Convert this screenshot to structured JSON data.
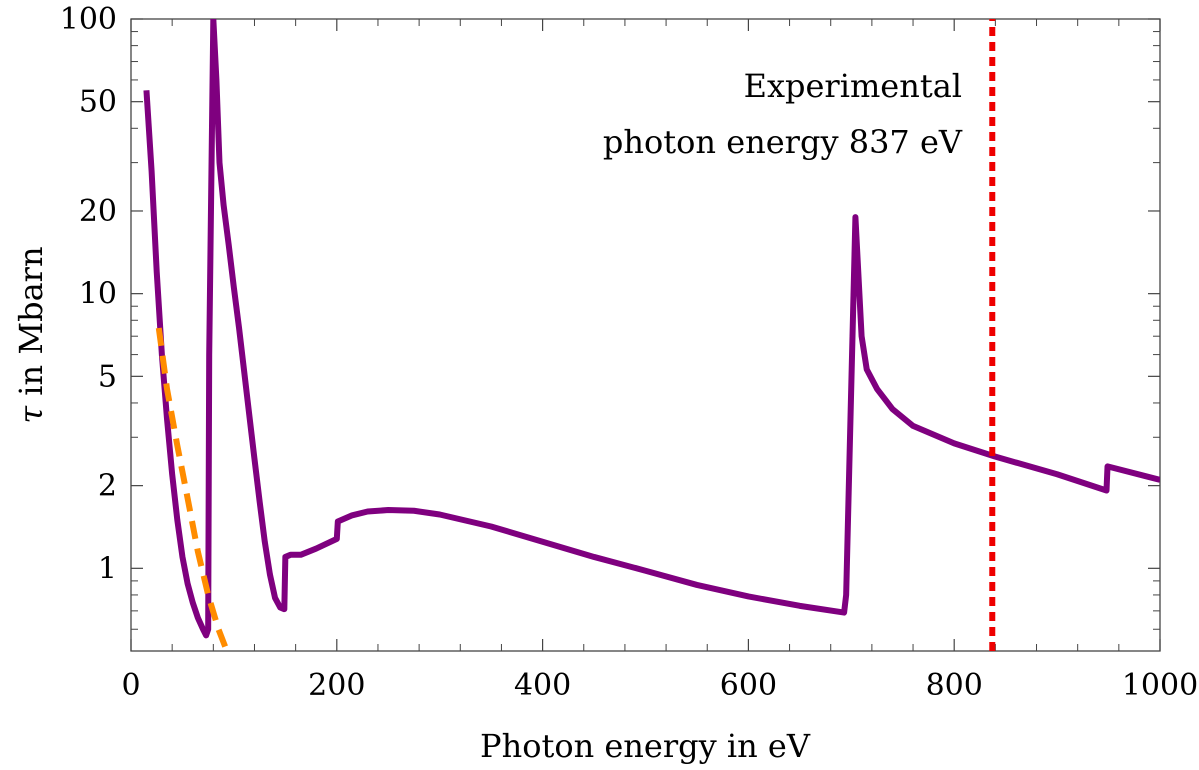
{
  "chart_data": {
    "type": "line",
    "xlabel": "Photon energy in eV",
    "ylabel_symbol": "τ",
    "ylabel_rest": " in Mbarn",
    "xlim": [
      0,
      1000
    ],
    "ylim": [
      0.5,
      100
    ],
    "yscale": "log",
    "grid": false,
    "x_ticks": [
      0,
      200,
      400,
      600,
      800,
      1000
    ],
    "x_tick_labels": [
      "0",
      "200",
      "400",
      "600",
      "800",
      "1000"
    ],
    "y_ticks": [
      1,
      2,
      5,
      10,
      20,
      50,
      100
    ],
    "y_tick_labels": [
      "1",
      "2",
      "5",
      "10",
      "20",
      "50",
      "100"
    ],
    "annotation": {
      "lines": [
        "Experimental",
        "photon energy 837 eV"
      ],
      "x_value": 837
    },
    "series": [
      {
        "style": "solid",
        "color": "#7f007f",
        "points": [
          [
            15,
            55
          ],
          [
            20,
            28
          ],
          [
            25,
            12
          ],
          [
            30,
            6
          ],
          [
            35,
            3.5
          ],
          [
            40,
            2.2
          ],
          [
            45,
            1.5
          ],
          [
            50,
            1.1
          ],
          [
            55,
            0.88
          ],
          [
            60,
            0.75
          ],
          [
            65,
            0.66
          ],
          [
            70,
            0.6
          ],
          [
            73,
            0.57
          ],
          [
            75,
            0.6
          ],
          [
            76,
            6
          ],
          [
            80,
            100
          ],
          [
            83,
            60
          ],
          [
            86,
            30
          ],
          [
            90,
            21
          ],
          [
            95,
            15
          ],
          [
            100,
            10.5
          ],
          [
            105,
            7.5
          ],
          [
            110,
            5.2
          ],
          [
            115,
            3.6
          ],
          [
            120,
            2.5
          ],
          [
            125,
            1.75
          ],
          [
            130,
            1.25
          ],
          [
            135,
            0.95
          ],
          [
            140,
            0.78
          ],
          [
            145,
            0.72
          ],
          [
            149,
            0.71
          ],
          [
            150,
            1.1
          ],
          [
            155,
            1.12
          ],
          [
            165,
            1.12
          ],
          [
            180,
            1.18
          ],
          [
            200,
            1.28
          ],
          [
            201,
            1.48
          ],
          [
            215,
            1.56
          ],
          [
            230,
            1.61
          ],
          [
            250,
            1.63
          ],
          [
            275,
            1.62
          ],
          [
            300,
            1.57
          ],
          [
            350,
            1.42
          ],
          [
            400,
            1.25
          ],
          [
            450,
            1.1
          ],
          [
            500,
            0.98
          ],
          [
            550,
            0.87
          ],
          [
            600,
            0.79
          ],
          [
            650,
            0.73
          ],
          [
            693,
            0.69
          ],
          [
            695,
            0.8
          ],
          [
            704,
            19
          ],
          [
            710,
            7
          ],
          [
            715,
            5.3
          ],
          [
            725,
            4.5
          ],
          [
            740,
            3.8
          ],
          [
            760,
            3.3
          ],
          [
            800,
            2.85
          ],
          [
            840,
            2.55
          ],
          [
            900,
            2.2
          ],
          [
            948,
            1.92
          ],
          [
            949,
            2.35
          ],
          [
            1000,
            2.1
          ]
        ]
      },
      {
        "style": "dashed",
        "color": "#ff8c00",
        "points": [
          [
            27,
            7.5
          ],
          [
            35,
            4.5
          ],
          [
            45,
            2.8
          ],
          [
            55,
            1.8
          ],
          [
            65,
            1.15
          ],
          [
            75,
            0.8
          ],
          [
            85,
            0.6
          ],
          [
            95,
            0.48
          ]
        ]
      },
      {
        "style": "dotted",
        "color": "#ee0000",
        "points": [
          [
            837,
            0.5
          ],
          [
            837,
            100
          ]
        ]
      }
    ]
  }
}
